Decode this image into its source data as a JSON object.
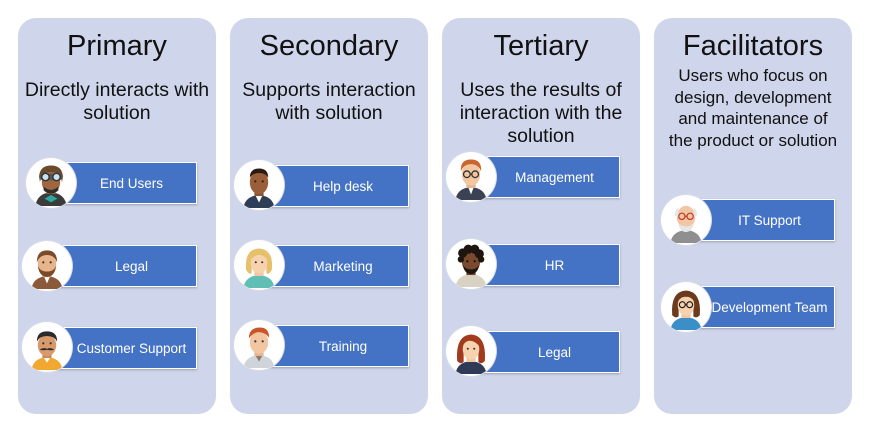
{
  "columns": [
    {
      "title": "Primary",
      "description": "Directly interacts with solution",
      "roles": [
        {
          "label": "End Users",
          "icon": "aviator-user-icon"
        },
        {
          "label": "Legal",
          "icon": "bearded-man-icon"
        },
        {
          "label": "Customer Support",
          "icon": "mustache-man-icon"
        }
      ]
    },
    {
      "title": "Secondary",
      "description": "Supports interaction with solution",
      "roles": [
        {
          "label": "Help desk",
          "icon": "man-avatar-icon"
        },
        {
          "label": "Marketing",
          "icon": "blonde-woman-icon"
        },
        {
          "label": "Training",
          "icon": "red-hair-man-icon"
        }
      ]
    },
    {
      "title": "Tertiary",
      "description": "Uses the results of interaction with the solution",
      "roles": [
        {
          "label": "Management",
          "icon": "man-with-glasses-icon"
        },
        {
          "label": "HR",
          "icon": "curly-hair-man-icon"
        },
        {
          "label": "Legal",
          "icon": "red-hair-woman-icon"
        }
      ]
    },
    {
      "title": "Facilitators",
      "description": "Users who focus on design, development and maintenance of the product or solution",
      "roles": [
        {
          "label": "IT Support",
          "icon": "elderly-man-icon"
        },
        {
          "label": "Development Team",
          "icon": "woman-with-glasses-icon"
        }
      ]
    }
  ],
  "colors": {
    "panel": "#cfd5ea",
    "role_box": "#4472c4",
    "role_text": "#ffffff"
  }
}
